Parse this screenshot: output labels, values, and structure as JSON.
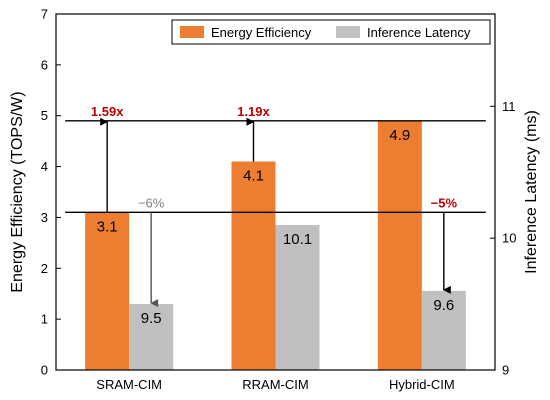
{
  "chart_data": {
    "type": "bar",
    "categories": [
      "SRAM-CIM",
      "RRAM-CIM",
      "Hybrid-CIM"
    ],
    "series": [
      {
        "name": "Energy Efficiency",
        "axis": "left",
        "color": "#ed7d31",
        "values": [
          3.1,
          4.1,
          4.9
        ],
        "labels": [
          "3.1",
          "4.1",
          "4.9"
        ]
      },
      {
        "name": "Inference Latency",
        "axis": "right",
        "color": "#c0c0c0",
        "values": [
          9.5,
          10.1,
          9.6
        ],
        "labels": [
          "9.5",
          "10.1",
          "9.6"
        ]
      }
    ],
    "ylabel": "Energy Efficiency (TOPS/W)",
    "y2label": "Inference Latency (ms)",
    "ylim": [
      0,
      7
    ],
    "y2lim": [
      9,
      11.7
    ],
    "yticks": [
      "0",
      "1",
      "2",
      "3",
      "4",
      "5",
      "6",
      "7"
    ],
    "y2ticks": [
      "9",
      "10",
      "11"
    ],
    "legend": "top-right",
    "grid": false,
    "reference_lines": [
      {
        "from_category": 0,
        "to_category": 2,
        "y_left": 4.9
      },
      {
        "from_category": 0,
        "to_category": 2,
        "y_left": 3.1
      }
    ],
    "annotations": [
      {
        "text": "1.59x",
        "category": 0,
        "series": 0,
        "color": "#c00000",
        "bold": true
      },
      {
        "text": "1.19x",
        "category": 1,
        "series": 0,
        "color": "#c00000",
        "bold": true
      },
      {
        "text": "−6%",
        "category": 0,
        "series": 1,
        "color": "#808080",
        "bold": false
      },
      {
        "text": "−5%",
        "category": 2,
        "series": 1,
        "color": "#c00000",
        "bold": true
      }
    ]
  }
}
